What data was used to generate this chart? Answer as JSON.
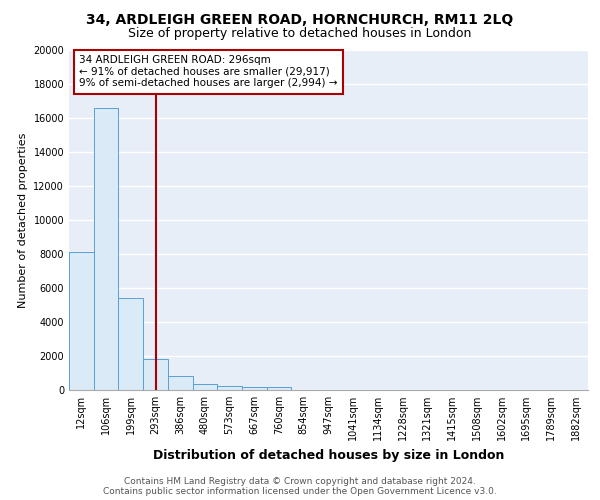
{
  "title_line1": "34, ARDLEIGH GREEN ROAD, HORNCHURCH, RM11 2LQ",
  "title_line2": "Size of property relative to detached houses in London",
  "xlabel": "Distribution of detached houses by size in London",
  "ylabel": "Number of detached properties",
  "annotation_line1": "34 ARDLEIGH GREEN ROAD: 296sqm",
  "annotation_line2": "← 91% of detached houses are smaller (29,917)",
  "annotation_line3": "9% of semi-detached houses are larger (2,994) →",
  "bar_edge_color": "#5a9fd4",
  "bar_fill_color": "#daeaf7",
  "vline_color": "#aa0000",
  "annotation_box_color": "#ffffff",
  "annotation_box_edge": "#aa0000",
  "background_color": "#e8eef8",
  "grid_color": "#ffffff",
  "categories": [
    "12sqm",
    "106sqm",
    "199sqm",
    "293sqm",
    "386sqm",
    "480sqm",
    "573sqm",
    "667sqm",
    "760sqm",
    "854sqm",
    "947sqm",
    "1041sqm",
    "1134sqm",
    "1228sqm",
    "1321sqm",
    "1415sqm",
    "1508sqm",
    "1602sqm",
    "1695sqm",
    "1789sqm",
    "1882sqm"
  ],
  "values": [
    8100,
    16600,
    5400,
    1800,
    800,
    380,
    250,
    200,
    180,
    0,
    0,
    0,
    0,
    0,
    0,
    0,
    0,
    0,
    0,
    0,
    0
  ],
  "ylim": [
    0,
    20000
  ],
  "yticks": [
    0,
    2000,
    4000,
    6000,
    8000,
    10000,
    12000,
    14000,
    16000,
    18000,
    20000
  ],
  "vline_position": 3.0,
  "footer_line1": "Contains HM Land Registry data © Crown copyright and database right 2024.",
  "footer_line2": "Contains public sector information licensed under the Open Government Licence v3.0.",
  "title_fontsize": 10,
  "subtitle_fontsize": 9,
  "ylabel_fontsize": 8,
  "xlabel_fontsize": 9,
  "tick_fontsize": 7,
  "annotation_fontsize": 7.5,
  "footer_fontsize": 6.5
}
